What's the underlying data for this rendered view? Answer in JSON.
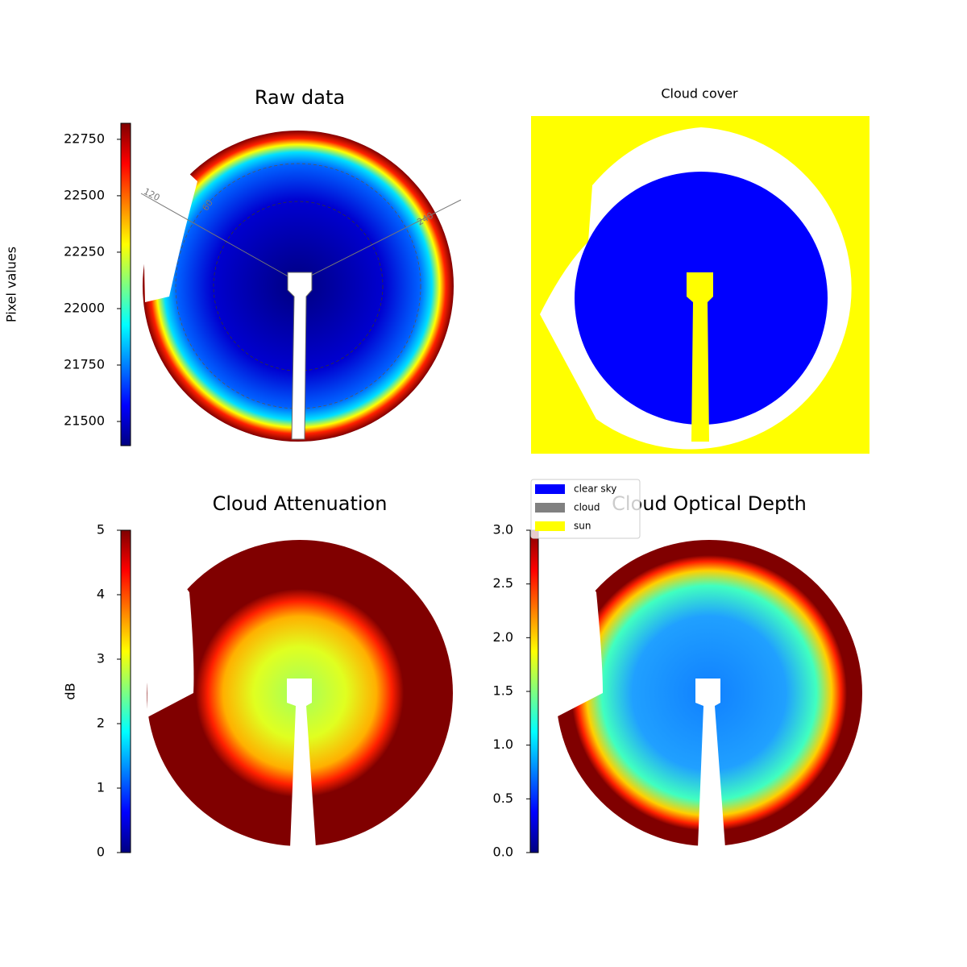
{
  "chart_data": [
    {
      "type": "image",
      "title": "Raw data",
      "colormap": "jet",
      "ylabel": "Pixel values",
      "ylim": [
        21393,
        22821
      ],
      "yticks": [
        21500,
        21750,
        22000,
        22250,
        22500,
        22750
      ],
      "annotations": [
        "120",
        "60",
        "240"
      ]
    },
    {
      "type": "category-image",
      "title": "Cloud cover",
      "legend_items": [
        {
          "name": "clear sky",
          "color": "#0000ff"
        },
        {
          "name": "cloud",
          "color": "#808080"
        },
        {
          "name": "sun",
          "color": "#ffff00"
        }
      ]
    },
    {
      "type": "image",
      "title": "Cloud Attenuation",
      "colormap": "jet",
      "ylabel": "dB",
      "ylim": [
        0,
        5
      ],
      "yticks": [
        0,
        1,
        2,
        3,
        4,
        5
      ]
    },
    {
      "type": "image",
      "title": "Cloud Optical Depth",
      "colormap": "jet",
      "ylim": [
        0,
        3
      ],
      "yticks": [
        {
          "value": 0,
          "label": "0.0"
        },
        {
          "value": 0.5,
          "label": "0.5"
        },
        {
          "value": 1,
          "label": "1.0"
        },
        {
          "value": 1.5,
          "label": "1.5"
        },
        {
          "value": 2,
          "label": "2.0"
        },
        {
          "value": 2.5,
          "label": "2.5"
        },
        {
          "value": 3,
          "label": "3.0"
        }
      ]
    }
  ]
}
